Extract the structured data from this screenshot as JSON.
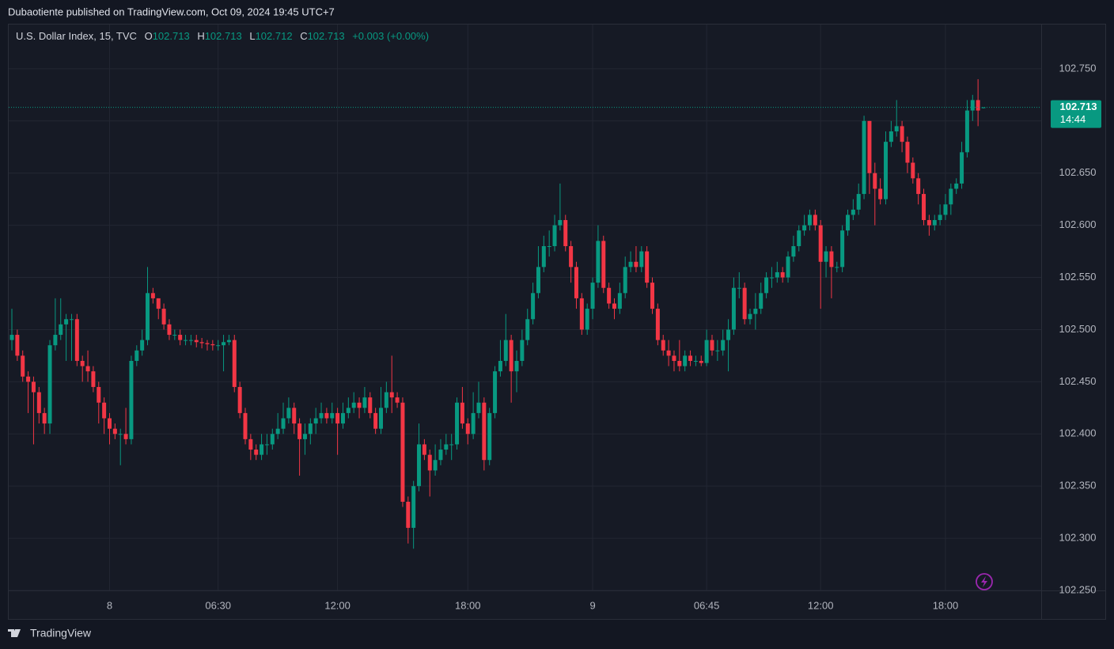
{
  "published": "Dubaotiente published on TradingView.com, Oct 09, 2024 19:45 UTC+7",
  "brand": "TradingView",
  "chart_data": {
    "type": "candlestick",
    "title": "U.S. Dollar Index, 15, TVC",
    "ohlc_labels": [
      "O",
      "H",
      "L",
      "C"
    ],
    "change": "+0.003 (+0.00%)",
    "countdown": "14:44",
    "up_color": "#089981",
    "down_color": "#f23645",
    "grid": true,
    "ylim": [
      102.25,
      102.7924
    ],
    "yticks": [
      {
        "value": 102.25,
        "label": "102.250"
      },
      {
        "value": 102.3,
        "label": "102.300"
      },
      {
        "value": 102.35,
        "label": "102.350"
      },
      {
        "value": 102.4,
        "label": "102.400"
      },
      {
        "value": 102.45,
        "label": "102.450"
      },
      {
        "value": 102.5,
        "label": "102.500"
      },
      {
        "value": 102.55,
        "label": "102.550"
      },
      {
        "value": 102.6,
        "label": "102.600"
      },
      {
        "value": 102.65,
        "label": "102.650"
      },
      {
        "value": 102.7,
        "label": "102.700"
      },
      {
        "value": 102.75,
        "label": "102.750"
      }
    ],
    "categories": [
      null,
      null,
      null,
      null,
      null,
      null,
      null,
      null,
      null,
      null,
      null,
      null,
      null,
      null,
      null,
      null,
      null,
      null,
      "8",
      null,
      null,
      null,
      null,
      null,
      null,
      null,
      null,
      null,
      null,
      null,
      null,
      null,
      null,
      null,
      null,
      null,
      null,
      null,
      "06:30",
      null,
      null,
      null,
      null,
      null,
      null,
      null,
      null,
      null,
      null,
      null,
      null,
      null,
      null,
      null,
      null,
      null,
      null,
      null,
      null,
      null,
      "12:00",
      null,
      null,
      null,
      null,
      null,
      null,
      null,
      null,
      null,
      null,
      null,
      null,
      null,
      null,
      null,
      null,
      null,
      null,
      null,
      null,
      null,
      null,
      null,
      "18:00",
      null,
      null,
      null,
      null,
      null,
      null,
      null,
      null,
      null,
      null,
      null,
      null,
      null,
      null,
      null,
      null,
      null,
      null,
      null,
      null,
      null,
      null,
      "9",
      null,
      null,
      null,
      null,
      null,
      null,
      null,
      null,
      null,
      null,
      null,
      null,
      null,
      null,
      null,
      null,
      null,
      null,
      null,
      null,
      "06:45",
      null,
      null,
      null,
      null,
      null,
      null,
      null,
      null,
      null,
      null,
      null,
      null,
      null,
      null,
      null,
      null,
      null,
      null,
      null,
      null,
      "12:00",
      null,
      null,
      null,
      null,
      null,
      null,
      null,
      null,
      null,
      null,
      null,
      null,
      null,
      null,
      null,
      null,
      null,
      null,
      null,
      null,
      null,
      null,
      "18:00",
      null,
      null,
      null,
      null,
      null,
      null,
      null
    ],
    "open": [
      102.49,
      102.495,
      102.475,
      102.455,
      102.45,
      102.44,
      102.42,
      102.41,
      102.485,
      102.495,
      102.505,
      102.51,
      102.51,
      102.47,
      102.465,
      102.46,
      102.445,
      102.43,
      102.415,
      102.405,
      102.4,
      102.4,
      102.395,
      102.47,
      102.48,
      102.49,
      102.535,
      102.53,
      102.52,
      102.505,
      102.495,
      102.495,
      102.49,
      102.49,
      102.49,
      102.488,
      102.487,
      102.486,
      102.485,
      102.485,
      102.488,
      102.49,
      102.445,
      102.42,
      102.395,
      102.385,
      102.38,
      102.39,
      102.39,
      102.4,
      102.405,
      102.415,
      102.425,
      102.41,
      102.395,
      102.4,
      102.41,
      102.415,
      102.42,
      102.415,
      102.42,
      102.41,
      102.42,
      102.425,
      102.43,
      102.425,
      102.435,
      102.42,
      102.405,
      102.425,
      102.44,
      102.435,
      102.43,
      102.335,
      102.31,
      102.35,
      102.39,
      102.38,
      102.365,
      102.375,
      102.385,
      102.39,
      102.39,
      102.43,
      102.41,
      102.4,
      102.42,
      102.43,
      102.375,
      102.42,
      102.46,
      102.47,
      102.49,
      102.46,
      102.47,
      102.49,
      102.51,
      102.535,
      102.56,
      102.58,
      102.58,
      102.6,
      102.605,
      102.58,
      102.56,
      102.53,
      102.5,
      102.52,
      102.545,
      102.585,
      102.54,
      102.525,
      102.52,
      102.535,
      102.56,
      102.565,
      102.56,
      102.575,
      102.545,
      102.52,
      102.49,
      102.48,
      102.475,
      102.47,
      102.465,
      102.475,
      102.47,
      102.47,
      102.468,
      102.49,
      102.48,
      102.48,
      102.49,
      102.5,
      102.54,
      102.54,
      102.51,
      102.515,
      102.52,
      102.535,
      102.55,
      102.55,
      102.555,
      102.55,
      102.57,
      102.58,
      102.595,
      102.6,
      102.61,
      102.6,
      102.565,
      102.575,
      102.56,
      102.56,
      102.595,
      102.61,
      102.615,
      102.63,
      102.7,
      102.65,
      102.635,
      102.625,
      102.68,
      102.69,
      102.695,
      102.68,
      102.66,
      102.645,
      102.63,
      102.605,
      102.6,
      102.605,
      102.61,
      102.62,
      102.635,
      102.64,
      102.67,
      102.71,
      102.72,
      102.713
    ],
    "high": [
      102.52,
      102.5,
      102.48,
      102.46,
      102.455,
      102.445,
      102.425,
      102.49,
      102.53,
      102.53,
      102.515,
      102.515,
      102.515,
      102.475,
      102.48,
      102.465,
      102.45,
      102.435,
      102.42,
      102.41,
      102.405,
      102.425,
      102.475,
      102.485,
      102.5,
      102.56,
      102.54,
      102.53,
      102.525,
      102.51,
      102.5,
      102.5,
      102.495,
      102.495,
      102.495,
      102.492,
      102.49,
      102.49,
      102.49,
      102.495,
      102.495,
      102.495,
      102.45,
      102.425,
      102.4,
      102.39,
      102.4,
      102.4,
      102.405,
      102.42,
      102.43,
      102.435,
      102.43,
      102.415,
      102.41,
      102.415,
      102.425,
      102.43,
      102.425,
      102.43,
      102.425,
      102.43,
      102.435,
      102.44,
      102.435,
      102.445,
      102.44,
      102.425,
      102.445,
      102.45,
      102.475,
      102.44,
      102.435,
      102.34,
      102.355,
      102.41,
      102.395,
      102.385,
      102.39,
      102.395,
      102.4,
      102.4,
      102.435,
      102.445,
      102.415,
      102.44,
      102.45,
      102.435,
      102.425,
      102.465,
      102.49,
      102.515,
      102.495,
      102.48,
      102.5,
      102.52,
      102.545,
      102.58,
      102.59,
      102.595,
      102.61,
      102.64,
      102.61,
      102.585,
      102.565,
      102.535,
      102.525,
      102.55,
      102.6,
      102.59,
      102.545,
      102.53,
      102.545,
      102.57,
      102.575,
      102.58,
      102.58,
      102.58,
      102.55,
      102.525,
      102.495,
      102.49,
      102.48,
      102.49,
      102.48,
      102.48,
      102.475,
      102.475,
      102.5,
      102.495,
      102.49,
      102.5,
      102.51,
      102.55,
      102.555,
      102.545,
      102.52,
      102.535,
      102.545,
      102.555,
      102.56,
      102.565,
      102.56,
      102.575,
      102.59,
      102.6,
      102.61,
      102.615,
      102.615,
      102.605,
      102.58,
      102.58,
      102.565,
      102.6,
      102.615,
      102.625,
      102.64,
      102.705,
      102.7,
      102.66,
      102.645,
      102.69,
      102.7,
      102.72,
      102.7,
      102.685,
      102.665,
      102.65,
      102.635,
      102.61,
      102.61,
      102.62,
      102.63,
      102.64,
      102.645,
      102.68,
      102.72,
      102.725,
      102.74,
      102.713
    ],
    "low": [
      102.48,
      102.47,
      102.45,
      102.42,
      102.39,
      102.41,
      102.4,
      102.4,
      102.48,
      102.49,
      102.47,
      102.47,
      102.465,
      102.45,
      102.45,
      102.44,
      102.41,
      102.4,
      102.39,
      102.395,
      102.37,
      102.39,
      102.39,
      102.465,
      102.475,
      102.485,
      102.525,
      102.51,
      102.5,
      102.49,
      102.49,
      102.485,
      102.485,
      102.485,
      102.483,
      102.482,
      102.48,
      102.48,
      102.48,
      102.46,
      102.485,
      102.44,
      102.415,
      102.39,
      102.375,
      102.375,
      102.375,
      102.38,
      102.385,
      102.395,
      102.4,
      102.41,
      102.4,
      102.36,
      102.38,
      102.39,
      102.4,
      102.41,
      102.41,
      102.41,
      102.38,
      102.405,
      102.415,
      102.42,
      102.415,
      102.42,
      102.415,
      102.4,
      102.4,
      102.42,
      102.42,
      102.425,
      102.33,
      102.295,
      102.29,
      102.345,
      102.375,
      102.34,
      102.36,
      102.37,
      102.38,
      102.375,
      102.385,
      102.405,
      102.39,
      102.395,
      102.415,
      102.365,
      102.37,
      102.415,
      102.455,
      102.465,
      102.43,
      102.44,
      102.465,
      102.485,
      102.505,
      102.53,
      102.555,
      102.57,
      102.575,
      102.595,
      102.575,
      102.545,
      102.52,
      102.495,
      102.495,
      102.51,
      102.54,
      102.535,
      102.52,
      102.51,
      102.515,
      102.53,
      102.555,
      102.555,
      102.555,
      102.54,
      102.515,
      102.485,
      102.475,
      102.465,
      102.46,
      102.46,
      102.46,
      102.465,
      102.465,
      102.465,
      102.465,
      102.475,
      102.47,
      102.475,
      102.46,
      102.495,
      102.53,
      102.505,
      102.505,
      102.5,
      102.515,
      102.53,
      102.54,
      102.545,
      102.545,
      102.545,
      102.565,
      102.575,
      102.59,
      102.595,
      102.595,
      102.52,
      102.55,
      102.53,
      102.555,
      102.555,
      102.59,
      102.605,
      102.61,
      102.625,
      102.63,
      102.6,
      102.62,
      102.62,
      102.675,
      102.685,
      102.67,
      102.65,
      102.64,
      102.62,
      102.6,
      102.59,
      102.595,
      102.6,
      102.605,
      102.61,
      102.63,
      102.635,
      102.665,
      102.7,
      102.695,
      102.712
    ],
    "close": [
      102.495,
      102.475,
      102.455,
      102.45,
      102.44,
      102.42,
      102.41,
      102.485,
      102.495,
      102.505,
      102.51,
      102.51,
      102.47,
      102.465,
      102.46,
      102.445,
      102.43,
      102.415,
      102.405,
      102.4,
      102.4,
      102.395,
      102.47,
      102.48,
      102.49,
      102.535,
      102.53,
      102.52,
      102.505,
      102.495,
      102.495,
      102.49,
      102.49,
      102.49,
      102.488,
      102.487,
      102.486,
      102.485,
      102.485,
      102.488,
      102.49,
      102.445,
      102.42,
      102.395,
      102.385,
      102.38,
      102.39,
      102.39,
      102.4,
      102.405,
      102.415,
      102.425,
      102.41,
      102.395,
      102.4,
      102.41,
      102.415,
      102.42,
      102.415,
      102.42,
      102.41,
      102.42,
      102.425,
      102.43,
      102.425,
      102.435,
      102.42,
      102.405,
      102.425,
      102.44,
      102.435,
      102.43,
      102.335,
      102.31,
      102.35,
      102.39,
      102.38,
      102.365,
      102.375,
      102.385,
      102.39,
      102.39,
      102.43,
      102.41,
      102.4,
      102.42,
      102.43,
      102.375,
      102.42,
      102.46,
      102.47,
      102.49,
      102.46,
      102.47,
      102.49,
      102.51,
      102.535,
      102.56,
      102.58,
      102.58,
      102.6,
      102.605,
      102.58,
      102.56,
      102.53,
      102.5,
      102.52,
      102.545,
      102.585,
      102.54,
      102.525,
      102.52,
      102.535,
      102.56,
      102.565,
      102.56,
      102.575,
      102.545,
      102.52,
      102.49,
      102.48,
      102.475,
      102.47,
      102.465,
      102.475,
      102.47,
      102.47,
      102.468,
      102.49,
      102.48,
      102.48,
      102.49,
      102.5,
      102.54,
      102.54,
      102.51,
      102.515,
      102.52,
      102.535,
      102.55,
      102.55,
      102.555,
      102.55,
      102.57,
      102.58,
      102.595,
      102.6,
      102.61,
      102.6,
      102.565,
      102.575,
      102.56,
      102.56,
      102.595,
      102.61,
      102.615,
      102.63,
      102.7,
      102.65,
      102.635,
      102.625,
      102.68,
      102.69,
      102.695,
      102.68,
      102.66,
      102.645,
      102.63,
      102.605,
      102.6,
      102.605,
      102.61,
      102.62,
      102.635,
      102.64,
      102.67,
      102.71,
      102.72,
      102.71,
      102.713
    ]
  }
}
